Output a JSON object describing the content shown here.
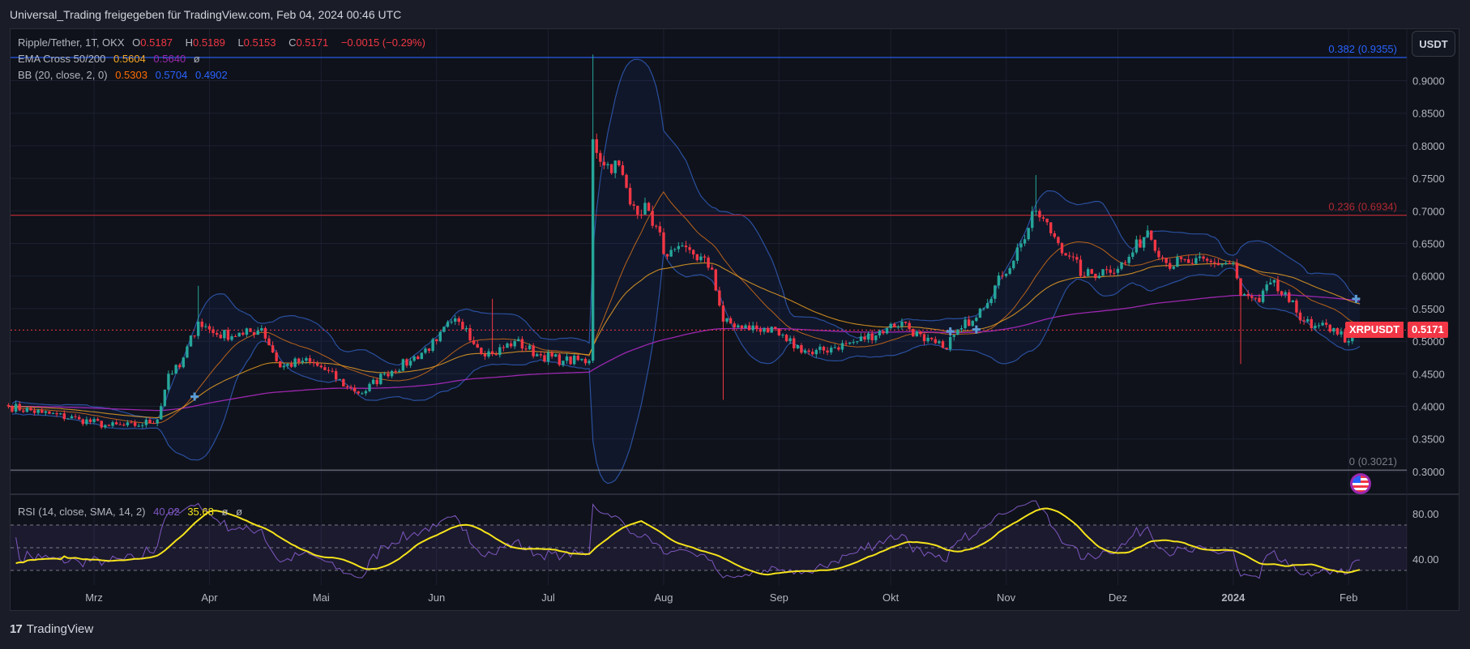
{
  "title": "Universal_Trading freigegeben für TradingView.com, Feb 04, 2024 00:46 UTC",
  "legend": {
    "symbol": "Ripple/Tether, 1T, OKX",
    "o_label": "O",
    "o": "0.5187",
    "h_label": "H",
    "h": "0.5189",
    "l_label": "L",
    "l": "0.5153",
    "c_label": "C",
    "c": "0.5171",
    "change": "−0.0015 (−0.29%)",
    "ema_label": "EMA Cross 50/200",
    "ema50": "0.5604",
    "ema200": "0.5640",
    "ema_extra": "ø",
    "bb_label": "BB (20, close, 2, 0)",
    "bb_basis": "0.5303",
    "bb_upper": "0.5704",
    "bb_lower": "0.4902"
  },
  "rsi_legend": {
    "label": "RSI (14, close, SMA, 14, 2)",
    "rsi": "40.02",
    "sma": "35.68",
    "extra1": "ø",
    "extra2": "ø"
  },
  "currency_button": "USDT",
  "price_tag": {
    "symbol": "XRPUSDT",
    "price": "0.5171"
  },
  "footer": {
    "logo": "17",
    "brand": "TradingView"
  },
  "colors": {
    "up": "#26a69a",
    "down": "#f23645",
    "ema50": "#f5a623",
    "ema200": "#9c27b0",
    "bb": "#2a4f9e",
    "bb_basis": "#b8621b",
    "rsi": "#7e57c2",
    "rsi_sma": "#f5e31b",
    "fib_top": "#2962ff",
    "fib_mid": "#b22833",
    "fib_zero": "#787b86"
  },
  "chart_data": {
    "type": "candlestick",
    "start_date": "2023-02-06",
    "ylim": [
      0.28,
      0.96
    ],
    "y_ticks": [
      "0.9000",
      "0.8500",
      "0.8000",
      "0.7500",
      "0.7000",
      "0.6500",
      "0.6000",
      "0.5500",
      "0.5000",
      "0.4500",
      "0.4000",
      "0.3500",
      "0.3000"
    ],
    "y_tick_values": [
      0.9,
      0.85,
      0.8,
      0.75,
      0.7,
      0.65,
      0.6,
      0.55,
      0.5,
      0.45,
      0.4,
      0.35,
      0.3
    ],
    "x_ticks": [
      {
        "label": "Mrz",
        "day": 23
      },
      {
        "label": "Apr",
        "day": 54
      },
      {
        "label": "Mai",
        "day": 84
      },
      {
        "label": "Jun",
        "day": 115
      },
      {
        "label": "Jul",
        "day": 145
      },
      {
        "label": "Aug",
        "day": 176
      },
      {
        "label": "Sep",
        "day": 207
      },
      {
        "label": "Okt",
        "day": 237
      },
      {
        "label": "Nov",
        "day": 268
      },
      {
        "label": "Dez",
        "day": 298
      },
      {
        "label": "2024",
        "day": 329
      },
      {
        "label": "Feb",
        "day": 360
      }
    ],
    "close_anchors": [
      [
        0,
        0.4
      ],
      [
        9,
        0.39
      ],
      [
        19,
        0.38
      ],
      [
        27,
        0.37
      ],
      [
        34,
        0.37
      ],
      [
        40,
        0.38
      ],
      [
        43,
        0.45
      ],
      [
        46,
        0.46
      ],
      [
        51,
        0.53
      ],
      [
        56,
        0.51
      ],
      [
        63,
        0.51
      ],
      [
        68,
        0.52
      ],
      [
        73,
        0.46
      ],
      [
        79,
        0.47
      ],
      [
        84,
        0.46
      ],
      [
        91,
        0.43
      ],
      [
        95,
        0.42
      ],
      [
        101,
        0.45
      ],
      [
        108,
        0.47
      ],
      [
        115,
        0.5
      ],
      [
        119,
        0.53
      ],
      [
        123,
        0.52
      ],
      [
        126,
        0.49
      ],
      [
        130,
        0.48
      ],
      [
        136,
        0.5
      ],
      [
        142,
        0.48
      ],
      [
        149,
        0.47
      ],
      [
        156,
        0.47
      ],
      [
        157,
        0.81
      ],
      [
        160,
        0.77
      ],
      [
        164,
        0.77
      ],
      [
        167,
        0.71
      ],
      [
        172,
        0.7
      ],
      [
        177,
        0.63
      ],
      [
        183,
        0.64
      ],
      [
        189,
        0.61
      ],
      [
        192,
        0.53
      ],
      [
        197,
        0.52
      ],
      [
        203,
        0.52
      ],
      [
        209,
        0.5
      ],
      [
        216,
        0.48
      ],
      [
        221,
        0.49
      ],
      [
        228,
        0.5
      ],
      [
        236,
        0.52
      ],
      [
        240,
        0.53
      ],
      [
        246,
        0.5
      ],
      [
        251,
        0.49
      ],
      [
        256,
        0.52
      ],
      [
        261,
        0.55
      ],
      [
        267,
        0.6
      ],
      [
        272,
        0.65
      ],
      [
        276,
        0.7
      ],
      [
        281,
        0.66
      ],
      [
        285,
        0.63
      ],
      [
        289,
        0.6
      ],
      [
        295,
        0.61
      ],
      [
        300,
        0.62
      ],
      [
        306,
        0.67
      ],
      [
        311,
        0.62
      ],
      [
        317,
        0.62
      ],
      [
        324,
        0.62
      ],
      [
        329,
        0.62
      ],
      [
        331,
        0.57
      ],
      [
        336,
        0.56
      ],
      [
        339,
        0.59
      ],
      [
        344,
        0.56
      ],
      [
        350,
        0.52
      ],
      [
        356,
        0.52
      ],
      [
        360,
        0.5
      ],
      [
        363,
        0.5171
      ]
    ],
    "wick_overrides": [
      {
        "day": 157,
        "high": 0.94
      },
      {
        "day": 192,
        "low": 0.41
      },
      {
        "day": 276,
        "high": 0.755
      },
      {
        "day": 331,
        "low": 0.465
      },
      {
        "day": 51,
        "high": 0.585
      },
      {
        "day": 130,
        "high": 0.565
      }
    ],
    "fib_levels": [
      {
        "label": "0.382 (0.9355)",
        "value": 0.9355,
        "key": "fib_top"
      },
      {
        "label": "0.236 (0.6934)",
        "value": 0.6934,
        "key": "fib_mid"
      },
      {
        "label": "0 (0.3021)",
        "value": 0.3021,
        "key": "fib_zero"
      }
    ],
    "cross_markers": [
      {
        "day": 50,
        "price": 0.415
      },
      {
        "day": 253,
        "price": 0.515
      },
      {
        "day": 260,
        "price": 0.518
      },
      {
        "day": 362,
        "price": 0.565
      }
    ],
    "last_price": 0.5171,
    "rsi": {
      "ylim": [
        20,
        95
      ],
      "ticks": [
        "80.00",
        "40.00"
      ],
      "tick_values": [
        80,
        40
      ],
      "bands": [
        70,
        50,
        30
      ]
    }
  }
}
